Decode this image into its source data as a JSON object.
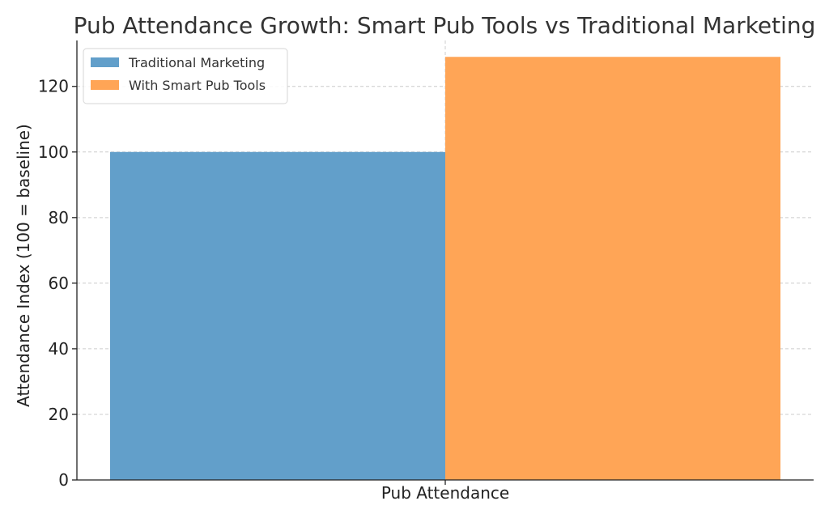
{
  "chart_data": {
    "type": "bar",
    "title": "Pub Attendance Growth: Smart Pub Tools vs Traditional Marketing",
    "xlabel": "Pub Attendance",
    "ylabel": "Attendance Index (100 = baseline)",
    "categories": [
      "Pub Attendance"
    ],
    "series": [
      {
        "name": "Traditional Marketing",
        "values": [
          100
        ],
        "color": "#629fca"
      },
      {
        "name": "With Smart Pub Tools",
        "values": [
          129
        ],
        "color": "#ffa556"
      }
    ],
    "ylim": [
      0,
      134
    ],
    "yticks": [
      0,
      20,
      40,
      60,
      80,
      100,
      120
    ],
    "grid": true,
    "legend_position": "top-left"
  }
}
